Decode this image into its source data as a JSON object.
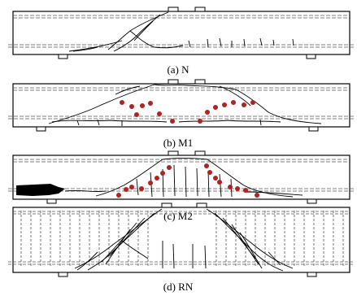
{
  "figure": {
    "panels": [
      {
        "id": "N",
        "caption": "(a) N",
        "stirrups": false,
        "repair_dots": 0,
        "spalled_end": false
      },
      {
        "id": "M1",
        "caption": "(b) M1",
        "stirrups": false,
        "repair_dots": 14,
        "spalled_end": false
      },
      {
        "id": "M2",
        "caption": "(c) M2",
        "stirrups": false,
        "repair_dots": 16,
        "spalled_end": true
      },
      {
        "id": "RN",
        "caption": "(d) RN",
        "stirrups": true,
        "repair_dots": 0,
        "spalled_end": false
      }
    ],
    "colors": {
      "line": "#000000",
      "rebar": "#555555",
      "repair_dot": "#b22222",
      "spall_fill": "#000000"
    }
  }
}
